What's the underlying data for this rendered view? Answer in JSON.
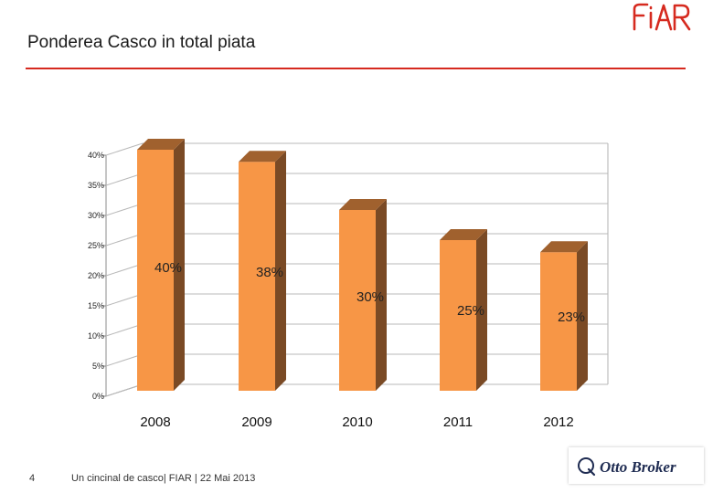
{
  "slide": {
    "title": "Ponderea Casco in total piata",
    "logo_text": "FIAR",
    "page_number": "4",
    "footer": "Un cincinal de casco| FIAR | 22 Mai 2013",
    "broker": "Otto Broker"
  },
  "colors": {
    "accent": "#d62a1f",
    "bar_front": "#f79646",
    "bar_top": "#a0612e",
    "bar_side": "#7a4a25",
    "broker_text": "#1f2c52"
  },
  "chart_data": {
    "type": "bar",
    "categories": [
      "2008",
      "2009",
      "2010",
      "2011",
      "2012"
    ],
    "values": [
      40,
      38,
      30,
      25,
      23
    ],
    "data_labels": [
      "40%",
      "38%",
      "30%",
      "25%",
      "23%"
    ],
    "y_ticks": [
      "0%",
      "5%",
      "10%",
      "15%",
      "20%",
      "25%",
      "30%",
      "35%",
      "40%"
    ],
    "y_tick_values": [
      0,
      5,
      10,
      15,
      20,
      25,
      30,
      35,
      40
    ],
    "ylim": [
      0,
      40
    ],
    "grid": true,
    "three_d": true,
    "legend": "none"
  }
}
